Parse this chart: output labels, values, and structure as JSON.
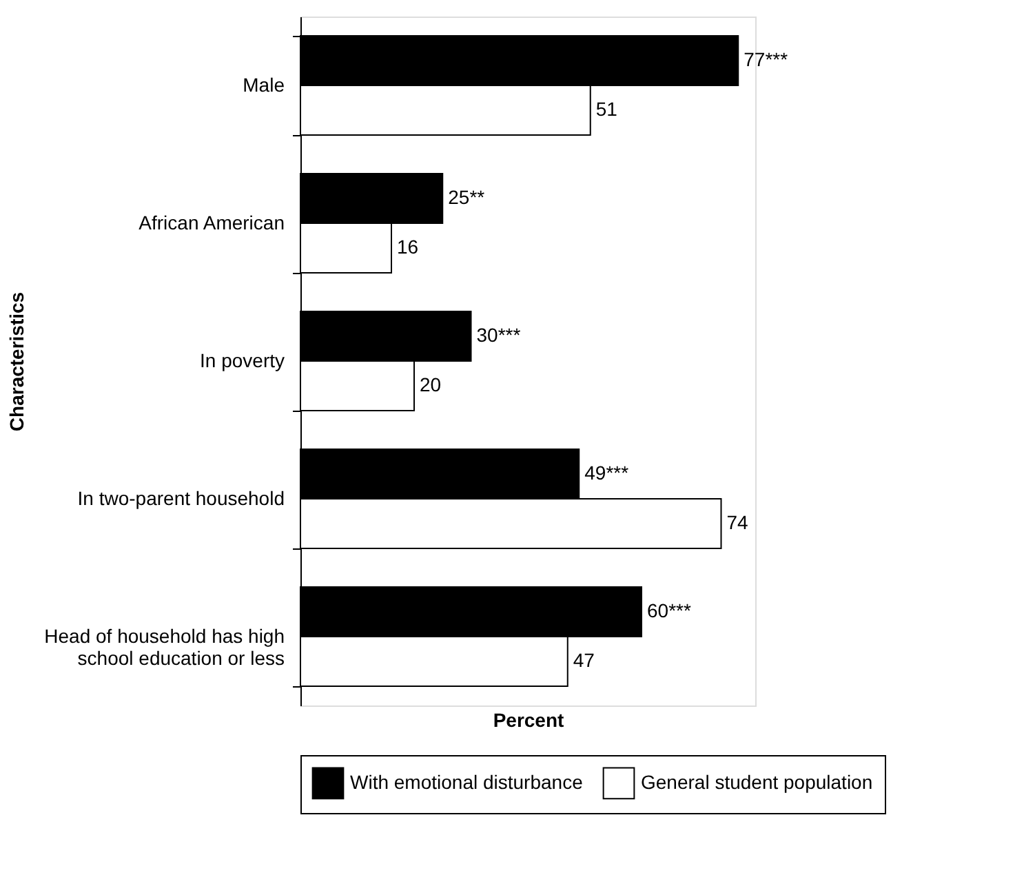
{
  "chart_data": {
    "type": "bar",
    "orientation": "horizontal",
    "xlabel": "Percent",
    "ylabel": "Characteristics",
    "categories": [
      "Male",
      "African American",
      "In poverty",
      "In two-parent household",
      "Head of household has high school education or less"
    ],
    "series": [
      {
        "name": "With emotional disturbance",
        "color": "#000000",
        "values": [
          77,
          25,
          30,
          49,
          60
        ],
        "value_labels": [
          "77***",
          "25**",
          "30***",
          "49***",
          "60***"
        ]
      },
      {
        "name": "General student population",
        "color": "#ffffff",
        "values": [
          51,
          16,
          20,
          74,
          47
        ],
        "value_labels": [
          "51",
          "16",
          "20",
          "74",
          "47"
        ]
      }
    ],
    "legend": "bottom",
    "tick_labels": "y",
    "grid": false
  }
}
